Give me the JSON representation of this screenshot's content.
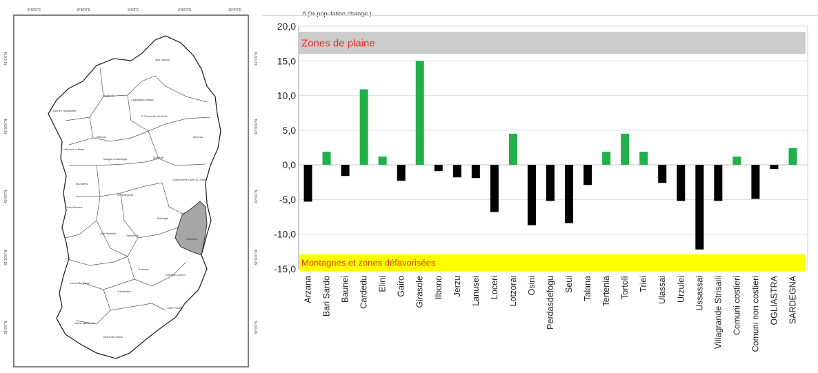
{
  "map": {
    "top_ticks": [
      "8°00'0\"E",
      "8°30'0\"E",
      "9°0'0\"E",
      "9°30'0\"E",
      "10°0'0\"E"
    ],
    "left_ticks": [
      "41°0'0\"N",
      "40°30'0\"N",
      "40°0'0\"N",
      "39°30'0\"N",
      "39°0'0\"N"
    ],
    "highlighted_region": "Ogliastra",
    "region_fill": "#a6a6a6"
  },
  "chart_data": {
    "type": "bar",
    "title": "Δ (% population change )",
    "categories": [
      "Arzana",
      "Bari Sardo",
      "Baunei",
      "Cardedu",
      "Elini",
      "Gairo",
      "Girasole",
      "Ilbono",
      "Jerzu",
      "Lanusei",
      "Loceri",
      "Lotzorai",
      "Osini",
      "Perdasdefogu",
      "Seui",
      "Talana",
      "Tertenia",
      "Tortolì",
      "Triei",
      "Ulassai",
      "Urzulei",
      "Ussassai",
      "Villagrande Strisaili",
      "Comuni costieri",
      "Comuni non costieri",
      "OGLIASTRA",
      "SARDEGNA"
    ],
    "values": [
      -5.3,
      1.9,
      -1.6,
      10.9,
      1.2,
      -2.3,
      15.0,
      -0.9,
      -1.8,
      -1.9,
      -6.8,
      4.5,
      -8.7,
      -5.2,
      -8.4,
      -2.9,
      1.9,
      4.5,
      1.9,
      -2.6,
      -5.2,
      -12.2,
      -5.2,
      1.2,
      -4.9,
      -0.6,
      2.4
    ],
    "colors": {
      "positive": "#22b04b",
      "negative": "#000000"
    },
    "ylim": [
      -15,
      20
    ],
    "yticks": [
      "20,0",
      "15,0",
      "10,0",
      "5,0",
      "0,0",
      "-5,0",
      "-10,0",
      "-15,0"
    ],
    "ytick_values": [
      20,
      15,
      10,
      5,
      0,
      -5,
      -10,
      -15
    ],
    "grid": true,
    "bands": [
      {
        "label": "Zones de plaine",
        "from": 16,
        "to": 19.2,
        "fill": "#cccccc",
        "text_color": "#e8312a"
      },
      {
        "label": "Montagnes et zones défavorisées",
        "from": -15.3,
        "to": -12.9,
        "fill": "#ffff00",
        "text_color": "#e8312a"
      }
    ]
  }
}
